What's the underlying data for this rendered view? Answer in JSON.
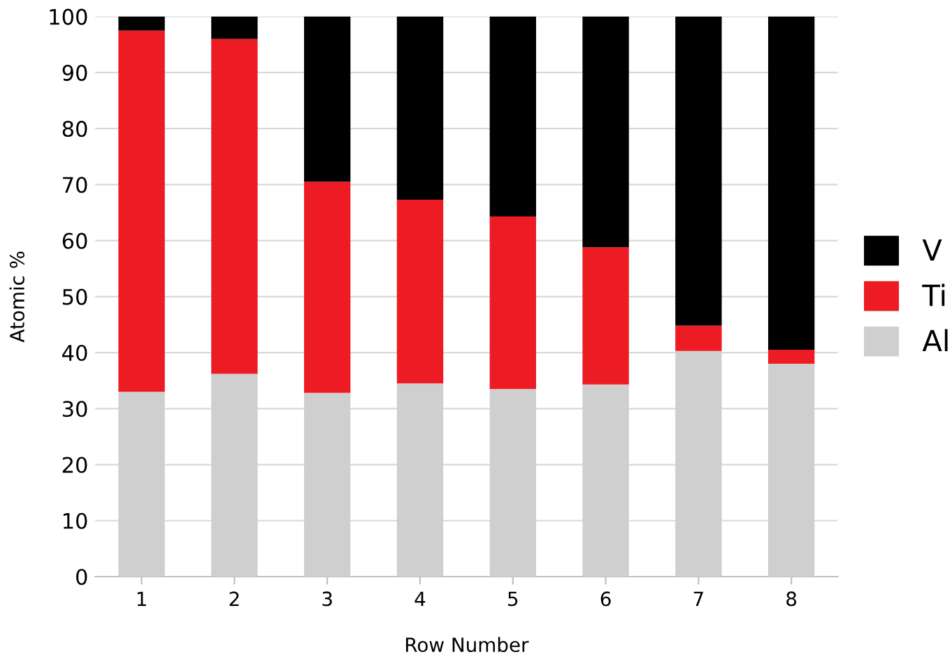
{
  "chart_data": {
    "type": "bar",
    "stacked": true,
    "xlabel": "Row Number",
    "ylabel": "Atomic %",
    "categories": [
      "1",
      "2",
      "3",
      "4",
      "5",
      "6",
      "7",
      "8"
    ],
    "series": [
      {
        "name": "Al",
        "color": "#cfcfcf",
        "values": [
          33,
          36.2,
          32.8,
          34.5,
          33.5,
          34.3,
          40.3,
          38
        ]
      },
      {
        "name": "Ti",
        "color": "#ed1c24",
        "values": [
          64.5,
          59.8,
          37.7,
          32.8,
          30.8,
          24.5,
          4.5,
          2.5
        ]
      },
      {
        "name": "V",
        "color": "#000000",
        "values": [
          2.5,
          4,
          29.5,
          32.7,
          35.7,
          41.2,
          55.2,
          59.5
        ]
      }
    ],
    "ylim": [
      0,
      100
    ],
    "yticks": [
      0,
      10,
      20,
      30,
      40,
      50,
      60,
      70,
      80,
      90,
      100
    ],
    "grid": "y",
    "legend": "right"
  }
}
